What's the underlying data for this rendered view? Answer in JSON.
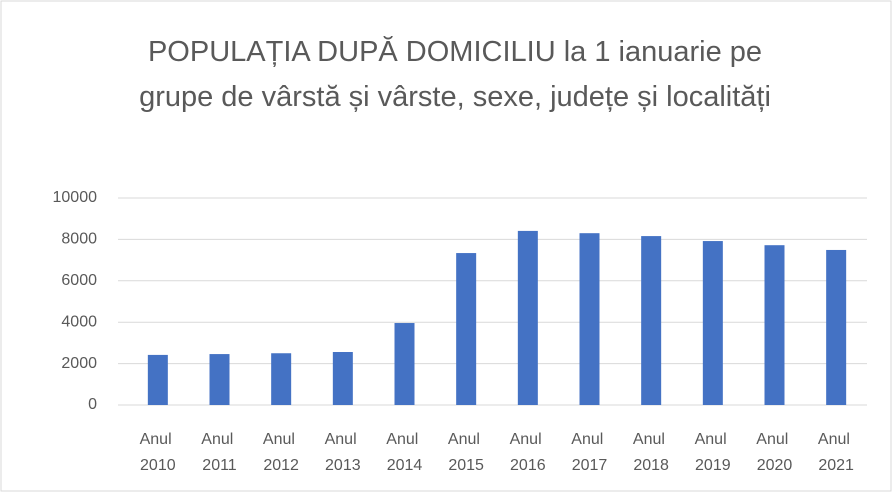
{
  "chart_data": {
    "type": "bar",
    "title": "POPULAȚIA DUPĂ DOMICILIU la 1 ianuarie pe grupe de vârstă și vârste, sexe, județe și localități",
    "categories": [
      "Anul 2010",
      "Anul 2011",
      "Anul 2012",
      "Anul 2013",
      "Anul 2014",
      "Anul 2015",
      "Anul 2016",
      "Anul 2017",
      "Anul 2018",
      "Anul 2019",
      "Anul 2020",
      "Anul 2021"
    ],
    "values": [
      2420,
      2460,
      2500,
      2560,
      3960,
      7340,
      8410,
      8300,
      8160,
      7920,
      7720,
      7490
    ],
    "color": "#4472c4",
    "ylim": [
      0,
      10000
    ],
    "yticks": [
      0,
      2000,
      4000,
      6000,
      8000,
      10000
    ],
    "grid": true
  }
}
